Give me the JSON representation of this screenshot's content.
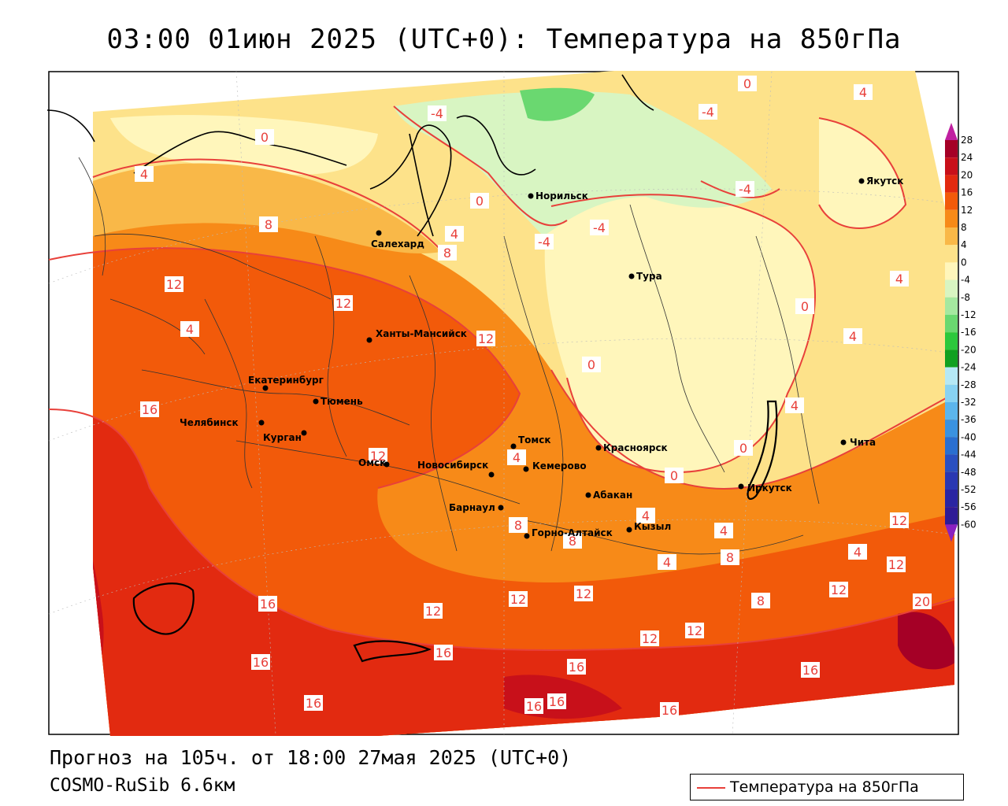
{
  "title": "03:00 01июн 2025 (UTC+0): Температура на 850гПа",
  "footer": {
    "forecast": "Прогноз на 105ч. от 18:00 27мая 2025 (UTC+0)",
    "model": "COSMO-RuSib 6.6км"
  },
  "legend": {
    "label": "Температура на 850гПа",
    "line_color": "#e8403a"
  },
  "colorbar": {
    "values": [
      28,
      24,
      20,
      16,
      12,
      8,
      4,
      0,
      -4,
      -8,
      -12,
      -16,
      -20,
      -24,
      -28,
      -32,
      -36,
      -40,
      -44,
      -48,
      -52,
      -56,
      -60
    ],
    "colors": [
      "#a50026",
      "#c8101a",
      "#e22a10",
      "#f25a0a",
      "#f78a18",
      "#f9b848",
      "#fde28a",
      "#fff6bb",
      "#d8f5c2",
      "#a5e8a0",
      "#6ad870",
      "#2cc83c",
      "#10a020",
      "#b5e8f5",
      "#88d2f2",
      "#5cb5ec",
      "#3a92e0",
      "#2a6fd0",
      "#2a50c0",
      "#2a38b2",
      "#2a25a2",
      "#2f1b96",
      "#3b148a"
    ],
    "top_arrow_color": "#c020a0",
    "bottom_arrow_color": "#8a20c0"
  },
  "cities": [
    {
      "name": "Норильск"
    },
    {
      "name": "Якутск"
    },
    {
      "name": "Салехард"
    },
    {
      "name": "Тура"
    },
    {
      "name": "Ханты-Мансийск"
    },
    {
      "name": "Екатеринбург"
    },
    {
      "name": "Тюмень"
    },
    {
      "name": "Челябинск"
    },
    {
      "name": "Курган"
    },
    {
      "name": "Омск"
    },
    {
      "name": "Новосибирск"
    },
    {
      "name": "Томск"
    },
    {
      "name": "Кемерово"
    },
    {
      "name": "Красноярск"
    },
    {
      "name": "Абакан"
    },
    {
      "name": "Иркутск"
    },
    {
      "name": "Барнаул"
    },
    {
      "name": "Горно-Алтайск"
    },
    {
      "name": "Кызыл"
    },
    {
      "name": "Чита"
    }
  ],
  "isotherm_labels": [
    "-4",
    "0",
    "4",
    "4",
    "0",
    "4",
    "-4",
    "-4",
    "0",
    "-4",
    "4",
    "8",
    "8",
    "12",
    "12",
    "12",
    "12",
    "16",
    "16",
    "16",
    "16",
    "16",
    "16",
    "16",
    "16",
    "16",
    "16",
    "12",
    "12",
    "12",
    "12",
    "12",
    "12",
    "12",
    "12",
    "8",
    "8",
    "8",
    "8",
    "0",
    "0",
    "0",
    "0",
    "4",
    "4",
    "4",
    "4",
    "4",
    "4",
    "20",
    "-4",
    "4",
    "4"
  ]
}
